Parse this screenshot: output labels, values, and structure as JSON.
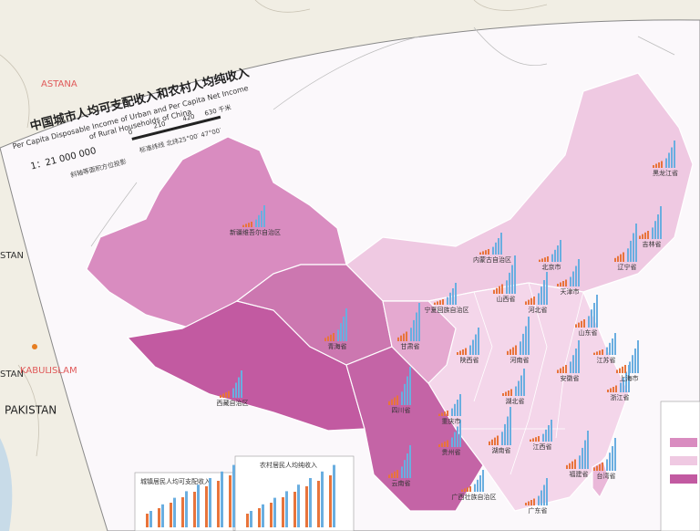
{
  "map": {
    "title_cn": "中国城市人均可支配收入和农村人均纯收入",
    "title_en_1": "Per Capita Disposable Income of Urban and Per Capita Net Income",
    "title_en_2": "of Rural Households of China",
    "scale": "1：21 000 000",
    "scale_ticks": [
      "0",
      "210",
      "420",
      "630 千米"
    ],
    "projection": "斜轴等面积方位投影",
    "parallels": "标准纬线 北纬25°00′ 47°00′",
    "countries": [
      "ASTANA",
      "KABUL",
      "ISLAM",
      "STAN",
      "STAN",
      "PAKISTAN"
    ],
    "regions": [
      "新疆维吾尔自治区",
      "西藏自治区",
      "青海省",
      "甘肃省",
      "内蒙古自治区",
      "黑龙江省",
      "吉林省",
      "辽宁省",
      "北京市",
      "天津市",
      "河北省",
      "山西省",
      "宁夏回族自治区",
      "陕西省",
      "山东省",
      "河南省",
      "江苏省",
      "湖北省",
      "安徽省",
      "四川省",
      "重庆市",
      "贵州省",
      "云南省",
      "湖南省",
      "江西省",
      "浙江省",
      "上海市",
      "福建省",
      "广西壮族自治区",
      "广东省",
      "台湾省"
    ],
    "legend_urban": "城镇居民人均可支配收入",
    "legend_rural": "农村居民人均纯收入"
  }
}
